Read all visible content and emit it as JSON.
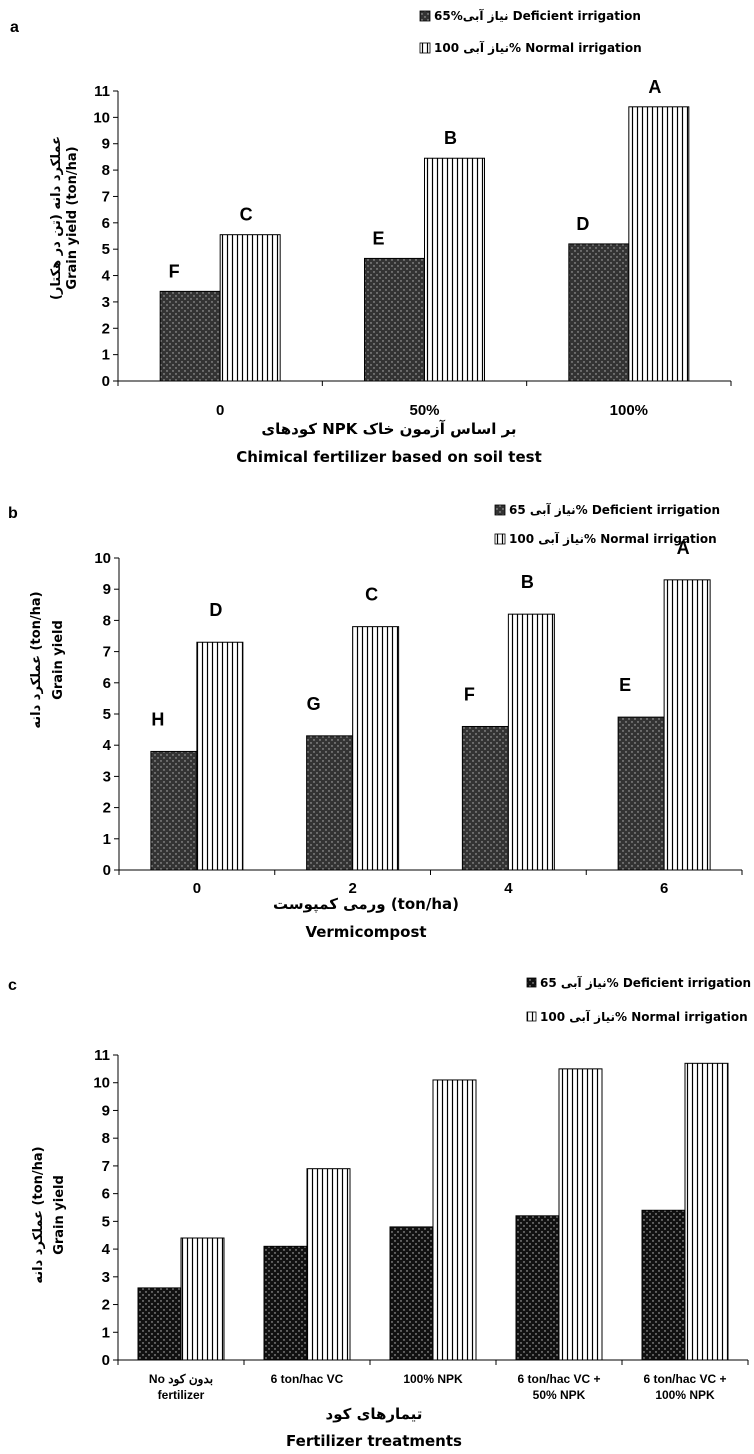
{
  "chart_data": [
    {
      "panel": "a",
      "type": "bar",
      "legend": {
        "deficient": "نیاز آبی%65 Deficient irrigation",
        "normal": "نیاز آبی 100% Normal irrigation"
      },
      "ylabel_lines": [
        "عملکرد دانه (تن در هکتار)",
        "Grain yield (ton/ha)"
      ],
      "xlabel_lines": [
        "کودهای NPK بر اساس آزمون خاک",
        "Chimical fertilizer based on soil test"
      ],
      "categories": [
        "0",
        "50%",
        "100%"
      ],
      "ylim": [
        0,
        11
      ],
      "yticks": [
        0,
        1,
        2,
        3,
        4,
        5,
        6,
        7,
        8,
        9,
        10,
        11
      ],
      "series": [
        {
          "name": "65% Deficient irrigation",
          "values": [
            3.4,
            4.65,
            5.2
          ],
          "letters": [
            "F",
            "E",
            "D"
          ]
        },
        {
          "name": "100% Normal irrigation",
          "values": [
            5.55,
            8.45,
            10.4
          ],
          "letters": [
            "C",
            "B",
            "A"
          ]
        }
      ]
    },
    {
      "panel": "b",
      "type": "bar",
      "legend": {
        "deficient": "نیاز آبی 65% Deficient irrigation",
        "normal": "نیاز آبی 100% Normal irrigation"
      },
      "ylabel_lines": [
        "عملکرد دانه (ton/ha)",
        "Grain yield"
      ],
      "xlabel_lines": [
        "ورمی کمپوست (ton/ha)",
        "Vermicompost"
      ],
      "categories": [
        "0",
        "2",
        "4",
        "6"
      ],
      "ylim": [
        0,
        10
      ],
      "yticks": [
        0,
        1,
        2,
        3,
        4,
        5,
        6,
        7,
        8,
        9,
        10
      ],
      "series": [
        {
          "name": "65% Deficient irrigation",
          "values": [
            3.8,
            4.3,
            4.6,
            4.9
          ],
          "letters": [
            "H",
            "G",
            "F",
            "E"
          ]
        },
        {
          "name": "100% Normal irrigation",
          "values": [
            7.3,
            7.8,
            8.2,
            9.3
          ],
          "letters": [
            "D",
            "C",
            "B",
            "A"
          ]
        }
      ]
    },
    {
      "panel": "c",
      "type": "bar",
      "legend": {
        "deficient": "نیاز آبی 65% Deficient irrigation",
        "normal": "نیاز آبی 100% Normal irrigation"
      },
      "ylabel_lines": [
        "عملکرد دانه (ton/ha)",
        "Grain yield"
      ],
      "xlabel_lines": [
        "تیمارهای کود",
        "Fertilizer treatments"
      ],
      "categories": [
        [
          "No بدون کود",
          "fertilizer"
        ],
        [
          "6 ton/hac VC"
        ],
        [
          "100% NPK"
        ],
        [
          "6 ton/hac VC +",
          "50% NPK"
        ],
        [
          "6 ton/hac VC +",
          "100% NPK"
        ]
      ],
      "ylim": [
        0,
        11
      ],
      "yticks": [
        0,
        1,
        2,
        3,
        4,
        5,
        6,
        7,
        8,
        9,
        10,
        11
      ],
      "series": [
        {
          "name": "65% Deficient irrigation",
          "values": [
            2.6,
            4.1,
            4.8,
            5.2,
            5.4
          ]
        },
        {
          "name": "100% Normal irrigation",
          "values": [
            4.4,
            6.9,
            10.1,
            10.5,
            10.7
          ]
        }
      ]
    }
  ]
}
